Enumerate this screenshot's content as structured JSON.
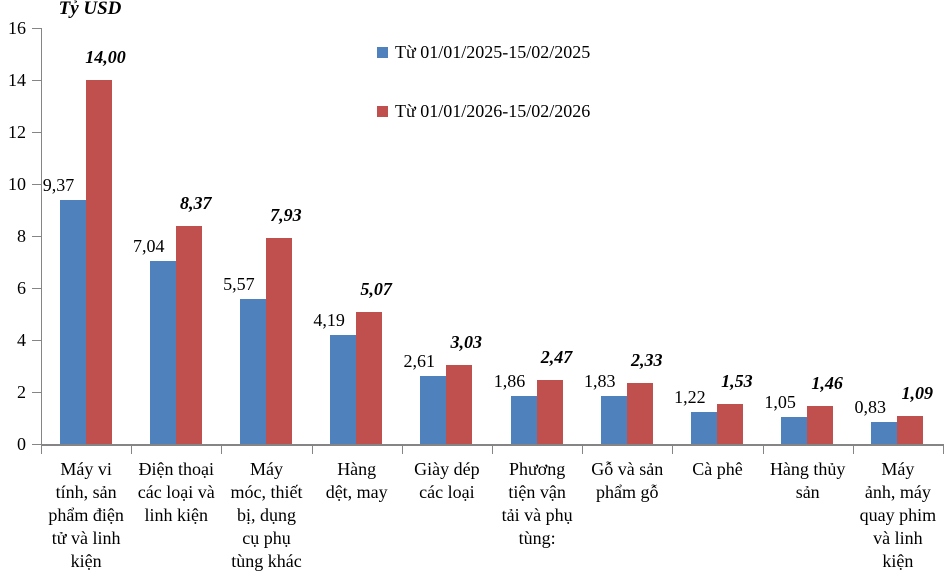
{
  "chart_data": {
    "type": "bar",
    "y_axis_title": "Tỷ USD",
    "y_axis": {
      "min": 0,
      "max": 16,
      "step": 2,
      "tick_labels": [
        "0",
        "2",
        "4",
        "6",
        "8",
        "10",
        "12",
        "14",
        "16"
      ]
    },
    "grid": false,
    "legend_position": "top-center",
    "background": "#ffffff",
    "axis_color": "#858585",
    "text_color": "#000000",
    "categories": [
      "Máy vi tính, sản phẩm điện tử và linh kiện",
      "Điện thoại các loại và linh kiện",
      "Máy móc, thiết bị, dụng cụ phụ tùng khác",
      "Hàng dệt, may",
      "Giày dép các loại",
      "Phương tiện vận tải và phụ tùng:",
      "Gỗ và sản phẩm gỗ",
      "Cà phê",
      "Hàng thủy sản",
      "Máy ảnh, máy quay phim và linh kiện"
    ],
    "category_lines": [
      [
        "Máy vi",
        "tính, sản",
        "phẩm điện",
        "tử và linh",
        "kiện"
      ],
      [
        "Điện thoại",
        "các loại và",
        "linh kiện"
      ],
      [
        "Máy",
        "móc, thiết",
        "bị, dụng",
        "cụ phụ",
        "tùng khác"
      ],
      [
        "Hàng",
        "dệt, may"
      ],
      [
        "Giày dép",
        "các loại"
      ],
      [
        "Phương",
        "tiện vận",
        "tải và phụ",
        "tùng:"
      ],
      [
        "Gỗ và sản",
        "phẩm gỗ"
      ],
      [
        "Cà phê"
      ],
      [
        "Hàng thủy",
        "sản"
      ],
      [
        "Máy",
        "ảnh, máy",
        "quay phim",
        "và linh",
        "kiện"
      ]
    ],
    "series": [
      {
        "name": "Từ 01/01/2025-15/02/2025",
        "color": "#4f81bd",
        "label_style": "regular",
        "values": [
          9.37,
          7.04,
          5.57,
          4.19,
          2.61,
          1.86,
          1.83,
          1.22,
          1.05,
          0.83
        ],
        "labels": [
          "9,37",
          "7,04",
          "5,57",
          "4,19",
          "2,61",
          "1,86",
          "1,83",
          "1,22",
          "1,05",
          "0,83"
        ]
      },
      {
        "name": "Từ 01/01/2026-15/02/2026",
        "color": "#c0504d",
        "label_style": "bold-italic",
        "values": [
          14.0,
          8.37,
          7.93,
          5.07,
          3.03,
          2.47,
          2.33,
          1.53,
          1.46,
          1.09
        ],
        "labels": [
          "14,00",
          "8,37",
          "7,93",
          "5,07",
          "3,03",
          "2,47",
          "2,33",
          "1,53",
          "1,46",
          "1,09"
        ]
      }
    ]
  }
}
